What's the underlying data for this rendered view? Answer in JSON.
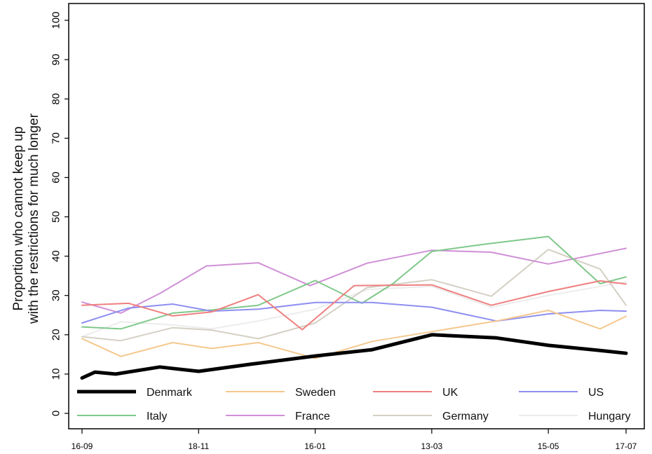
{
  "chart_data": {
    "type": "line",
    "title": "",
    "xlabel": "",
    "ylabel_lines": [
      "Proportion who cannot keep up",
      "with the restrictions for much longer"
    ],
    "ylim": [
      0,
      100
    ],
    "yticks": [
      "0",
      "10",
      "20",
      "30",
      "40",
      "50",
      "60",
      "70",
      "80",
      "90",
      "100"
    ],
    "xlim": [
      0,
      21
    ],
    "xticks": [
      {
        "x": 0,
        "label": "16-09"
      },
      {
        "x": 4.5,
        "label": "18-11"
      },
      {
        "x": 9,
        "label": "16-01"
      },
      {
        "x": 13.5,
        "label": "13-03"
      },
      {
        "x": 18,
        "label": "15-05"
      },
      {
        "x": 21,
        "label": "17-07"
      }
    ],
    "grid": false,
    "legend_placement": "bottom-inside",
    "series": [
      {
        "name": "Denmark",
        "color": "#000000",
        "width": 5,
        "x": [
          0,
          0.5,
          1.3,
          3,
          4.5,
          6.5,
          9,
          11.2,
          13.5,
          16,
          18,
          20,
          21
        ],
        "y": [
          9,
          10.5,
          10,
          11.8,
          10.7,
          12.5,
          14.6,
          16.2,
          20,
          19.2,
          17.3,
          16,
          15.3
        ]
      },
      {
        "name": "Sweden",
        "color": "#f5c88e",
        "width": 2,
        "x": [
          0,
          1.5,
          3.5,
          5,
          6.8,
          9,
          11.2,
          13.5,
          16,
          18,
          20,
          21
        ],
        "y": [
          19,
          14.5,
          18,
          16.5,
          18,
          14,
          18.3,
          20.8,
          23.5,
          26.2,
          21.5,
          24.7
        ]
      },
      {
        "name": "UK",
        "color": "#ef7f7f",
        "width": 2,
        "x": [
          0,
          1.8,
          3.5,
          5,
          6.8,
          8.5,
          10.5,
          13.5,
          15.8,
          18,
          20,
          21
        ],
        "y": [
          27.5,
          28,
          24.8,
          25.8,
          30.2,
          21.3,
          32.5,
          32.7,
          27.5,
          31,
          33.7,
          32.9
        ]
      },
      {
        "name": "US",
        "color": "#8e8ef2",
        "width": 2,
        "x": [
          0,
          1.8,
          3.5,
          5,
          6.8,
          9,
          11.2,
          13.5,
          16,
          18,
          20,
          21
        ],
        "y": [
          23,
          26.8,
          27.8,
          26,
          26.5,
          28.2,
          28.2,
          27,
          23.5,
          25.3,
          26.2,
          26
        ]
      },
      {
        "name": "Italy",
        "color": "#7fc88a",
        "width": 2,
        "x": [
          0,
          1.5,
          3.5,
          5,
          6.8,
          9,
          10.8,
          12,
          13.5,
          15.5,
          18,
          20,
          21
        ],
        "y": [
          22,
          21.5,
          25.5,
          26.3,
          27.5,
          33.8,
          28,
          33,
          41.2,
          43,
          45,
          33,
          34.7
        ]
      },
      {
        "name": "France",
        "color": "#cf8fd6",
        "width": 2,
        "x": [
          0,
          1.5,
          3,
          4.8,
          6.8,
          8.8,
          11,
          13.5,
          15.8,
          18,
          21
        ],
        "y": [
          28.3,
          25.5,
          30.5,
          37.5,
          38.3,
          32.5,
          38.2,
          41.5,
          41,
          38,
          42
        ]
      },
      {
        "name": "Germany",
        "color": "#d4d0c4",
        "width": 2,
        "x": [
          0,
          1.5,
          3.5,
          5,
          6.8,
          9,
          11,
          13.5,
          15.8,
          18,
          20,
          21
        ],
        "y": [
          19.5,
          18.5,
          21.8,
          21.2,
          19,
          23,
          32,
          34,
          29.8,
          41.7,
          36.7,
          27.5
        ]
      },
      {
        "name": "Hungary",
        "color": "#ececec",
        "width": 2,
        "x": [
          0,
          1.5,
          3.5,
          5,
          6.8,
          9,
          11,
          13.5,
          15.8,
          18,
          20,
          21
        ],
        "y": [
          19.5,
          23.3,
          22.5,
          21.5,
          23.5,
          26.5,
          31.5,
          32.3,
          27,
          30,
          32.3,
          33.5
        ]
      }
    ]
  }
}
